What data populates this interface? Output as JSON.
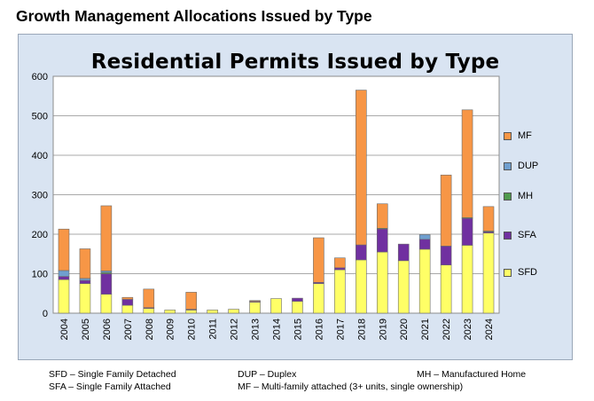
{
  "page_title": "Growth Management Allocations Issued by Type",
  "chart_data": {
    "type": "bar",
    "stacked": true,
    "title": "Residential Permits Issued by Type",
    "xlabel": "",
    "ylabel": "",
    "ylim": [
      0,
      600
    ],
    "yticks": [
      0,
      100,
      200,
      300,
      400,
      500,
      600
    ],
    "grid": true,
    "legend_position": "right",
    "categories": [
      "2004",
      "2005",
      "2006",
      "2007",
      "2008",
      "2009",
      "2010",
      "2011",
      "2012",
      "2013",
      "2014",
      "2015",
      "2016",
      "2017",
      "2018",
      "2019",
      "2020",
      "2021",
      "2022",
      "2023",
      "2024"
    ],
    "series": [
      {
        "name": "SFD",
        "color": "#ffff66",
        "values": [
          85,
          75,
          48,
          20,
          12,
          8,
          8,
          8,
          10,
          28,
          37,
          30,
          75,
          110,
          135,
          155,
          133,
          162,
          122,
          172,
          203
        ]
      },
      {
        "name": "SFA",
        "color": "#7030a0",
        "values": [
          8,
          8,
          52,
          15,
          2,
          0,
          2,
          0,
          0,
          2,
          0,
          8,
          3,
          5,
          38,
          58,
          42,
          25,
          48,
          68,
          3
        ]
      },
      {
        "name": "MH",
        "color": "#4e9a4e",
        "values": [
          0,
          0,
          3,
          0,
          0,
          0,
          0,
          0,
          0,
          0,
          0,
          0,
          0,
          0,
          0,
          2,
          0,
          0,
          0,
          2,
          2
        ]
      },
      {
        "name": "DUP",
        "color": "#6f9fcf",
        "values": [
          15,
          5,
          4,
          0,
          0,
          0,
          0,
          0,
          0,
          0,
          0,
          0,
          0,
          0,
          0,
          0,
          0,
          12,
          0,
          0,
          0
        ]
      },
      {
        "name": "MF",
        "color": "#f79646",
        "values": [
          105,
          75,
          165,
          5,
          47,
          0,
          43,
          0,
          0,
          2,
          0,
          0,
          113,
          25,
          392,
          62,
          0,
          0,
          180,
          273,
          62
        ]
      }
    ],
    "legend_order": [
      "MF",
      "DUP",
      "MH",
      "SFA",
      "SFD"
    ]
  },
  "footnotes": {
    "sfd": "SFD – Single Family Detached",
    "sfa": "SFA – Single Family Attached",
    "dup": "DUP – Duplex",
    "mf": "MF – Multi-family attached (3+ units, single ownership)",
    "mh": "MH – Manufactured Home"
  }
}
